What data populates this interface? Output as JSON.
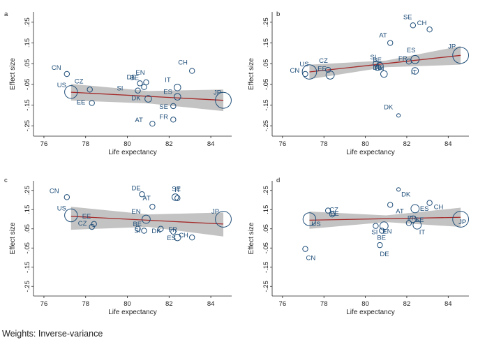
{
  "footnote": "Weights: Inverse-variance",
  "chart_data": [
    {
      "type": "scatter",
      "panel_label": "a",
      "xlabel": "Life expectancy",
      "ylabel": "Effect size",
      "xlim": [
        75.5,
        85
      ],
      "ylim": [
        -0.3,
        0.3
      ],
      "xticks": [
        "76",
        "78",
        "80",
        "82",
        "84"
      ],
      "xtick_values": [
        76,
        78,
        80,
        82,
        84
      ],
      "yticks": [
        ".25",
        ".15",
        ".05",
        "-.05",
        "-.15",
        "-.25"
      ],
      "ytick_values": [
        0.25,
        0.15,
        0.05,
        -0.05,
        -0.15,
        -0.25
      ],
      "fit": {
        "x": [
          77.3,
          84.6
        ],
        "y": [
          -0.088,
          -0.127
        ]
      },
      "ci": {
        "x": [
          77.3,
          81,
          84.6
        ],
        "upper": [
          -0.048,
          -0.082,
          -0.075
        ],
        "lower": [
          -0.128,
          -0.142,
          -0.179
        ]
      },
      "points": [
        {
          "label": "CN",
          "x": 77.1,
          "y": 0.0,
          "w": 3
        },
        {
          "label": "US",
          "x": 77.3,
          "y": -0.087,
          "w": 8
        },
        {
          "label": "CZ",
          "x": 78.2,
          "y": -0.075,
          "w": 3
        },
        {
          "label": "EE",
          "x": 78.3,
          "y": -0.14,
          "w": 3
        },
        {
          "label": "EN",
          "x": 80.9,
          "y": -0.04,
          "w": 3
        },
        {
          "label": "DE",
          "x": 80.6,
          "y": -0.045,
          "w": 3
        },
        {
          "label": "BE",
          "x": 80.8,
          "y": -0.063,
          "w": 3
        },
        {
          "label": "SI",
          "x": 80.5,
          "y": -0.08,
          "w": 3
        },
        {
          "label": "CH",
          "x": 83.1,
          "y": 0.015,
          "w": 3
        },
        {
          "label": "IT",
          "x": 82.4,
          "y": -0.065,
          "w": 4
        },
        {
          "label": "ES",
          "x": 82.4,
          "y": -0.11,
          "w": 4
        },
        {
          "label": "DK",
          "x": 81.0,
          "y": -0.12,
          "w": 4
        },
        {
          "label": "SE",
          "x": 82.2,
          "y": -0.155,
          "w": 3
        },
        {
          "label": "FR",
          "x": 82.2,
          "y": -0.22,
          "w": 3
        },
        {
          "label": "AT",
          "x": 81.2,
          "y": -0.24,
          "w": 3
        },
        {
          "label": "JP",
          "x": 84.6,
          "y": -0.127,
          "w": 10
        }
      ]
    },
    {
      "type": "scatter",
      "panel_label": "b",
      "xlabel": "Life expectancy",
      "ylabel": "Effect size",
      "xlim": [
        75.5,
        85
      ],
      "ylim": [
        -0.3,
        0.3
      ],
      "xticks": [
        "76",
        "78",
        "80",
        "82",
        "84"
      ],
      "xtick_values": [
        76,
        78,
        80,
        82,
        84
      ],
      "yticks": [
        ".25",
        ".15",
        ".05",
        "-.05",
        "-.15",
        "-.25"
      ],
      "ytick_values": [
        0.25,
        0.15,
        0.05,
        -0.05,
        -0.15,
        -0.25
      ],
      "fit": {
        "x": [
          77.3,
          84.6
        ],
        "y": [
          0.01,
          0.09
        ]
      },
      "ci": {
        "x": [
          77.3,
          81,
          84.6
        ],
        "upper": [
          0.045,
          0.065,
          0.135
        ],
        "lower": [
          -0.025,
          0.033,
          0.045
        ]
      },
      "points": [
        {
          "label": "CN",
          "x": 77.1,
          "y": 0.0,
          "w": 3
        },
        {
          "label": "US",
          "x": 77.3,
          "y": 0.01,
          "w": 9
        },
        {
          "label": "CZ",
          "x": 78.2,
          "y": 0.02,
          "w": 3
        },
        {
          "label": "EE",
          "x": 78.3,
          "y": -0.005,
          "w": 5
        },
        {
          "label": "SI",
          "x": 80.5,
          "y": 0.05,
          "w": 3
        },
        {
          "label": "BE",
          "x": 80.7,
          "y": 0.04,
          "w": 4
        },
        {
          "label": "DE",
          "x": 80.6,
          "y": 0.03,
          "w": 3
        },
        {
          "label": "EN",
          "x": 80.9,
          "y": 0.0,
          "w": 4
        },
        {
          "label": "AT",
          "x": 81.2,
          "y": 0.15,
          "w": 3
        },
        {
          "label": "SE",
          "x": 82.3,
          "y": 0.235,
          "w": 3
        },
        {
          "label": "CH",
          "x": 83.1,
          "y": 0.215,
          "w": 3
        },
        {
          "label": "ES",
          "x": 82.4,
          "y": 0.07,
          "w": 5
        },
        {
          "label": "FR",
          "x": 82.1,
          "y": 0.06,
          "w": 3
        },
        {
          "label": "IT",
          "x": 82.4,
          "y": 0.015,
          "w": 4
        },
        {
          "label": "DK",
          "x": 81.6,
          "y": -0.2,
          "w": 2
        },
        {
          "label": "JP",
          "x": 84.6,
          "y": 0.09,
          "w": 10
        }
      ]
    },
    {
      "type": "scatter",
      "panel_label": "c",
      "xlabel": "Life expectancy",
      "ylabel": "Effect size",
      "xlim": [
        75.5,
        85
      ],
      "ylim": [
        -0.3,
        0.3
      ],
      "xticks": [
        "76",
        "78",
        "80",
        "82",
        "84"
      ],
      "xtick_values": [
        76,
        78,
        80,
        82,
        84
      ],
      "yticks": [
        ".25",
        ".15",
        ".05",
        "-.05",
        "-.15",
        "-.25"
      ],
      "ytick_values": [
        0.25,
        0.15,
        0.05,
        -0.05,
        -0.15,
        -0.25
      ],
      "fit": {
        "x": [
          77.3,
          84.6
        ],
        "y": [
          0.115,
          0.075
        ]
      },
      "ci": {
        "x": [
          77.3,
          81,
          84.6
        ],
        "upper": [
          0.165,
          0.125,
          0.135
        ],
        "lower": [
          0.045,
          0.06,
          0.01
        ]
      },
      "points": [
        {
          "label": "CN",
          "x": 77.1,
          "y": 0.215,
          "w": 3
        },
        {
          "label": "US",
          "x": 77.3,
          "y": 0.12,
          "w": 8
        },
        {
          "label": "EE",
          "x": 78.4,
          "y": 0.075,
          "w": 3
        },
        {
          "label": "CZ",
          "x": 78.3,
          "y": 0.06,
          "w": 3
        },
        {
          "label": "DE",
          "x": 80.7,
          "y": 0.23,
          "w": 3
        },
        {
          "label": "AT",
          "x": 81.2,
          "y": 0.165,
          "w": 3
        },
        {
          "label": "SE",
          "x": 82.3,
          "y": 0.215,
          "w": 4
        },
        {
          "label": "IT",
          "x": 82.4,
          "y": 0.21,
          "w": 3
        },
        {
          "label": "EN",
          "x": 80.9,
          "y": 0.1,
          "w": 5
        },
        {
          "label": "BE",
          "x": 80.5,
          "y": 0.05,
          "w": 3
        },
        {
          "label": "SI",
          "x": 80.8,
          "y": 0.04,
          "w": 3
        },
        {
          "label": "DK",
          "x": 81.6,
          "y": 0.05,
          "w": 3
        },
        {
          "label": "FR",
          "x": 82.2,
          "y": 0.035,
          "w": 3
        },
        {
          "label": "ES",
          "x": 82.4,
          "y": 0.005,
          "w": 4
        },
        {
          "label": "CH",
          "x": 83.1,
          "y": 0.005,
          "w": 3
        },
        {
          "label": "JP",
          "x": 84.6,
          "y": 0.1,
          "w": 10
        }
      ]
    },
    {
      "type": "scatter",
      "panel_label": "d",
      "xlabel": "Life expectancy",
      "ylabel": "Effect size",
      "xlim": [
        75.5,
        85
      ],
      "ylim": [
        -0.3,
        0.3
      ],
      "xticks": [
        "76",
        "78",
        "80",
        "82",
        "84"
      ],
      "xtick_values": [
        76,
        78,
        80,
        82,
        84
      ],
      "yticks": [
        ".25",
        ".15",
        ".05",
        "-.05",
        "-.15",
        "-.25"
      ],
      "ytick_values": [
        0.25,
        0.15,
        0.05,
        -0.05,
        -0.15,
        -0.25
      ],
      "fit": {
        "x": [
          77.3,
          84.6
        ],
        "y": [
          0.095,
          0.11
        ]
      },
      "ci": {
        "x": [
          77.3,
          81,
          84.6
        ],
        "upper": [
          0.14,
          0.12,
          0.16
        ],
        "lower": [
          0.05,
          0.085,
          0.06
        ]
      },
      "points": [
        {
          "label": "CN",
          "x": 77.1,
          "y": -0.055,
          "w": 3
        },
        {
          "label": "US",
          "x": 77.3,
          "y": 0.1,
          "w": 8
        },
        {
          "label": "CZ",
          "x": 78.2,
          "y": 0.145,
          "w": 3
        },
        {
          "label": "EE",
          "x": 78.4,
          "y": 0.125,
          "w": 3
        },
        {
          "label": "DK",
          "x": 81.6,
          "y": 0.255,
          "w": 2
        },
        {
          "label": "AT",
          "x": 81.2,
          "y": 0.175,
          "w": 3
        },
        {
          "label": "ES",
          "x": 82.4,
          "y": 0.155,
          "w": 5
        },
        {
          "label": "CH",
          "x": 83.1,
          "y": 0.185,
          "w": 3
        },
        {
          "label": "SE",
          "x": 82.3,
          "y": 0.1,
          "w": 4
        },
        {
          "label": "IT",
          "x": 82.5,
          "y": 0.07,
          "w": 5
        },
        {
          "label": "SI",
          "x": 80.5,
          "y": 0.065,
          "w": 3
        },
        {
          "label": "EN",
          "x": 80.9,
          "y": 0.065,
          "w": 5
        },
        {
          "label": "BE",
          "x": 80.8,
          "y": 0.04,
          "w": 3
        },
        {
          "label": "DE",
          "x": 80.7,
          "y": -0.035,
          "w": 3
        },
        {
          "label": "FR",
          "x": 82.1,
          "y": 0.08,
          "w": 3
        },
        {
          "label": "JP",
          "x": 84.6,
          "y": 0.1,
          "w": 10
        }
      ]
    }
  ]
}
